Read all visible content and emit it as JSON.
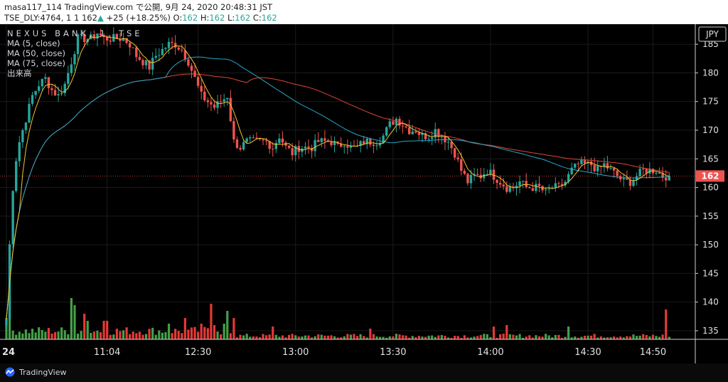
{
  "header": {
    "line1": "masa117_114 TradingView.com で公開, 9月 24, 2020 20:48:31 JST",
    "symbol": "TSE_DLY:4764, 1",
    "price": "1 162",
    "change": "+25 (+18.25%)",
    "o_label": "O:",
    "o_value": "162",
    "h_label": "H:",
    "h_value": "162",
    "l_label": "L:",
    "l_value": "162",
    "c_label": "C:",
    "c_value": "162"
  },
  "legend": {
    "symbol": "NEXUS BANK, 1, TSE",
    "ma5": "MA (5, close)",
    "ma50": "MA (50, close)",
    "ma75": "MA (75, close)",
    "volume": "出来高"
  },
  "footer": {
    "brand": "TradingView"
  },
  "colors": {
    "up": "#26a69a",
    "down": "#ef5350",
    "ma5": "#f0c330",
    "ma50": "#26a8c8",
    "ma75": "#e0453a",
    "volUp": "#43a047",
    "volDown": "#e53935",
    "bg": "#000000",
    "grid": "#1a1a1a"
  },
  "chart_data": {
    "type": "candlestick",
    "currency": "JPY",
    "last_price": "162",
    "y_ticks": [
      185,
      180,
      175,
      170,
      165,
      160,
      155,
      150,
      145,
      140,
      135
    ],
    "ylim": [
      133.5,
      188.5
    ],
    "x_ticks": [
      {
        "label": "24",
        "bar": 0
      },
      {
        "label": "11:04",
        "bar": 31
      },
      {
        "label": "12:30",
        "bar": 59
      },
      {
        "label": "13:00",
        "bar": 89
      },
      {
        "label": "13:30",
        "bar": 119
      },
      {
        "label": "14:00",
        "bar": 149
      },
      {
        "label": "14:30",
        "bar": 179
      },
      {
        "label": "14:50",
        "bar": 199
      }
    ],
    "price_anchors": [
      [
        0,
        137
      ],
      [
        1,
        150
      ],
      [
        2,
        160
      ],
      [
        3,
        165
      ],
      [
        4,
        168
      ],
      [
        6,
        172
      ],
      [
        8,
        176
      ],
      [
        10,
        178
      ],
      [
        12,
        179
      ],
      [
        14,
        177
      ],
      [
        16,
        176
      ],
      [
        18,
        178
      ],
      [
        20,
        182
      ],
      [
        22,
        186
      ],
      [
        24,
        186
      ],
      [
        26,
        186
      ],
      [
        28,
        187
      ],
      [
        30,
        186
      ],
      [
        32,
        186
      ],
      [
        34,
        186
      ],
      [
        36,
        186
      ],
      [
        38,
        185
      ],
      [
        40,
        183
      ],
      [
        42,
        182
      ],
      [
        44,
        181
      ],
      [
        46,
        183
      ],
      [
        48,
        184
      ],
      [
        50,
        185
      ],
      [
        52,
        185
      ],
      [
        54,
        184
      ],
      [
        56,
        182
      ],
      [
        58,
        179
      ],
      [
        60,
        176
      ],
      [
        62,
        175
      ],
      [
        64,
        174
      ],
      [
        66,
        175
      ],
      [
        68,
        176
      ],
      [
        70,
        168
      ],
      [
        72,
        167
      ],
      [
        74,
        168
      ],
      [
        76,
        168
      ],
      [
        78,
        168
      ],
      [
        80,
        168
      ],
      [
        82,
        167
      ],
      [
        84,
        169
      ],
      [
        86,
        167
      ],
      [
        88,
        166
      ],
      [
        90,
        167
      ],
      [
        92,
        167
      ],
      [
        94,
        167
      ],
      [
        96,
        168
      ],
      [
        98,
        168
      ],
      [
        100,
        168
      ],
      [
        102,
        167
      ],
      [
        104,
        168
      ],
      [
        106,
        167
      ],
      [
        108,
        167
      ],
      [
        110,
        168
      ],
      [
        112,
        168
      ],
      [
        114,
        168
      ],
      [
        116,
        169
      ],
      [
        118,
        171
      ],
      [
        120,
        172
      ],
      [
        122,
        171
      ],
      [
        124,
        170
      ],
      [
        126,
        170
      ],
      [
        128,
        169
      ],
      [
        130,
        169
      ],
      [
        132,
        170
      ],
      [
        134,
        169
      ],
      [
        136,
        168
      ],
      [
        138,
        166
      ],
      [
        140,
        163
      ],
      [
        142,
        161
      ],
      [
        144,
        162
      ],
      [
        146,
        162
      ],
      [
        148,
        163
      ],
      [
        150,
        162
      ],
      [
        152,
        161
      ],
      [
        154,
        160
      ],
      [
        156,
        160
      ],
      [
        158,
        161
      ],
      [
        160,
        160
      ],
      [
        162,
        160
      ],
      [
        164,
        160
      ],
      [
        166,
        159
      ],
      [
        168,
        160
      ],
      [
        170,
        160
      ],
      [
        172,
        161
      ],
      [
        174,
        163
      ],
      [
        176,
        164
      ],
      [
        178,
        164
      ],
      [
        180,
        164
      ],
      [
        182,
        163
      ],
      [
        184,
        164
      ],
      [
        186,
        163
      ],
      [
        188,
        162
      ],
      [
        190,
        161
      ],
      [
        192,
        161
      ],
      [
        194,
        162
      ],
      [
        196,
        163
      ],
      [
        198,
        163
      ],
      [
        200,
        163
      ],
      [
        202,
        162
      ],
      [
        204,
        162
      ]
    ],
    "volume_spikes": [
      [
        0,
        30
      ],
      [
        1,
        60
      ],
      [
        20,
        58
      ],
      [
        21,
        48
      ],
      [
        24,
        36
      ],
      [
        25,
        26
      ],
      [
        30,
        26
      ],
      [
        31,
        26
      ],
      [
        50,
        22
      ],
      [
        55,
        30
      ],
      [
        60,
        22
      ],
      [
        63,
        50
      ],
      [
        64,
        20
      ],
      [
        67,
        22
      ],
      [
        68,
        40
      ],
      [
        70,
        30
      ],
      [
        82,
        18
      ],
      [
        112,
        15
      ],
      [
        150,
        18
      ],
      [
        154,
        20
      ],
      [
        173,
        18
      ],
      [
        203,
        42
      ]
    ],
    "bars": 205
  }
}
